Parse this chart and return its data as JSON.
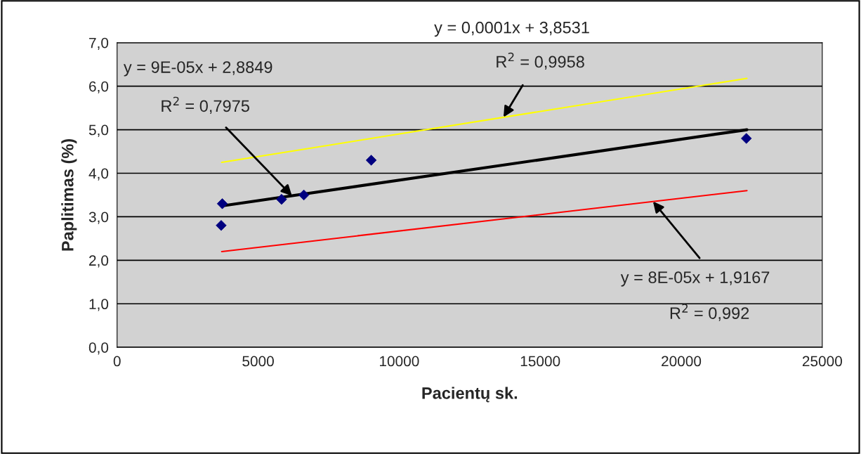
{
  "chart_data": {
    "type": "scatter",
    "xlabel": "Pacientų sk.",
    "ylabel": "Paplitimas (%)",
    "xlim": [
      0,
      25000
    ],
    "xticks": [
      0,
      5000,
      10000,
      15000,
      20000,
      25000
    ],
    "ylim": [
      0,
      7
    ],
    "yticks": [
      {
        "value": 0,
        "label": "0,0"
      },
      {
        "value": 1,
        "label": "1,0"
      },
      {
        "value": 2,
        "label": "2,0"
      },
      {
        "value": 3,
        "label": "3,0"
      },
      {
        "value": 4,
        "label": "4,0"
      },
      {
        "value": 5,
        "label": "5,0"
      },
      {
        "value": 6,
        "label": "6,0"
      },
      {
        "value": 7,
        "label": "7,0"
      }
    ],
    "grid": "y",
    "marker": "diamond",
    "series": [
      {
        "color": "#000080",
        "x": [
          3730,
          3690,
          5830,
          6620,
          9010,
          22310
        ],
        "values": [
          3.3,
          2.8,
          3.4,
          3.5,
          4.3,
          4.8
        ]
      },
      {
        "type": "line",
        "marker": "none",
        "color": "#ffff00",
        "x": [
          3710,
          22330
        ],
        "values": [
          4.25,
          6.18
        ]
      },
      {
        "type": "line",
        "marker": "none",
        "color": "#000000",
        "x": [
          3710,
          22330
        ],
        "values": [
          3.25,
          5.0
        ]
      },
      {
        "type": "line",
        "marker": "none",
        "color": "#ff0000",
        "x": [
          3710,
          22330
        ],
        "values": [
          2.2,
          3.6
        ]
      }
    ],
    "annotations": [
      "y = 0,0001x + 3,8531",
      {
        "text": "R$^{2}$ = 0,9958",
        "x": 13700,
        "y": 5.29
      },
      "y = 9E-05x + 2,8849",
      {
        "text": "R$^{2}$ = 0,7975",
        "x": 6200,
        "y": 3.48
      },
      {
        "text": "y = 8E-05x + 1,9167",
        "x": 19000,
        "y": 3.35
      },
      "R$^{2}$ = 0,992"
    ]
  }
}
